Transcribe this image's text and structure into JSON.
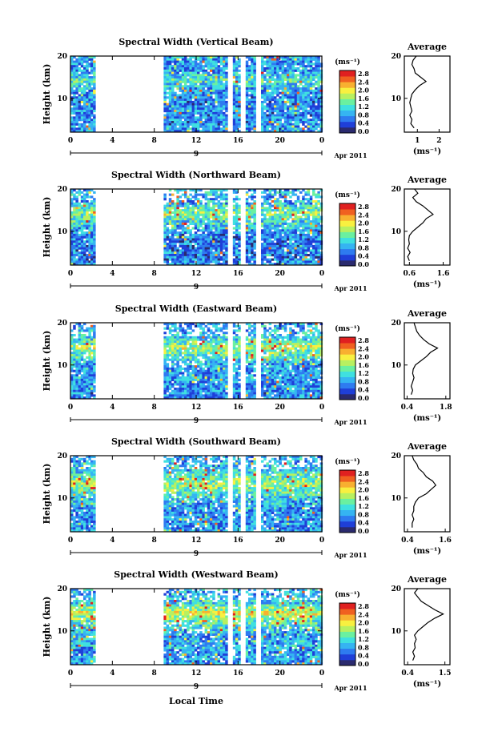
{
  "figure": {
    "xlabel": "Local Time",
    "date_label": "Apr 2011",
    "day_label": "9",
    "ylabel": "Height (km)",
    "colorbar_unit": "(ms⁻¹)",
    "colorbar_ticks": [
      "2.8",
      "2.4",
      "2.0",
      "1.6",
      "1.2",
      "0.8",
      "0.4",
      "0.0"
    ],
    "colormap": [
      "#2a2a6e",
      "#1f3fd8",
      "#2e7bf0",
      "#35b4f2",
      "#3fe0e0",
      "#6af0a0",
      "#b8f060",
      "#f8f040",
      "#f8b030",
      "#f06020",
      "#e02020"
    ],
    "avg_title": "Average",
    "avg_xlabel": "(ms⁻¹)"
  },
  "chart_data": [
    {
      "type": "heatmap",
      "title": "Spectral Width (Vertical Beam)",
      "xlabel": "Local Time",
      "ylabel": "Height (km)",
      "x_ticks": [
        "0",
        "4",
        "8",
        "12",
        "16",
        "20",
        "0"
      ],
      "xlim": [
        0,
        24
      ],
      "ylim": [
        2,
        20
      ],
      "y_ticks": [
        "20",
        "10"
      ],
      "colorbar_range": [
        0,
        2.8
      ],
      "data_gaps_hours": [
        [
          2.2,
          8.9
        ],
        [
          14.8,
          15.3
        ],
        [
          16.0,
          16.5
        ],
        [
          17.6,
          18.1
        ]
      ],
      "data_blocks_hours": [
        [
          0,
          1.9
        ],
        [
          1.9,
          2.2
        ],
        [
          8.9,
          24
        ]
      ],
      "average_profile": {
        "title": "Average",
        "xlabel": "(ms⁻¹)",
        "x_ticks": [
          "1",
          "2"
        ],
        "xlim": [
          0.4,
          2.5
        ],
        "ylim": [
          2,
          20
        ],
        "y_ticks": [
          "20",
          "10"
        ],
        "height_km": [
          3,
          4,
          5,
          6,
          7,
          8,
          9,
          10,
          11,
          12,
          13,
          14,
          15,
          16,
          17,
          18,
          19,
          20
        ],
        "width_ms": [
          0.85,
          0.7,
          0.75,
          0.65,
          0.75,
          0.7,
          0.65,
          0.7,
          0.75,
          0.9,
          1.1,
          1.4,
          1.15,
          0.9,
          0.85,
          0.75,
          0.8,
          0.95
        ]
      }
    },
    {
      "type": "heatmap",
      "title": "Spectral Width (Northward Beam)",
      "xlabel": "Local Time",
      "ylabel": "Height (km)",
      "x_ticks": [
        "0",
        "4",
        "8",
        "12",
        "16",
        "20",
        "0"
      ],
      "xlim": [
        0,
        24
      ],
      "ylim": [
        2,
        20
      ],
      "y_ticks": [
        "20",
        "10"
      ],
      "colorbar_range": [
        0,
        2.8
      ],
      "data_gaps_hours": [
        [
          2.2,
          8.9
        ],
        [
          14.8,
          15.3
        ],
        [
          16.0,
          16.5
        ],
        [
          17.6,
          18.1
        ]
      ],
      "data_blocks_hours": [
        [
          0,
          1.9
        ],
        [
          1.9,
          2.2
        ],
        [
          8.9,
          24
        ]
      ],
      "average_profile": {
        "title": "Average",
        "xlabel": "(ms⁻¹)",
        "x_ticks": [
          "0.6",
          "1.6"
        ],
        "xlim": [
          0.45,
          1.8
        ],
        "ylim": [
          2,
          20
        ],
        "y_ticks": [
          "20",
          "10"
        ],
        "height_km": [
          3,
          4,
          5,
          6,
          7,
          8,
          9,
          10,
          11,
          12,
          13,
          14,
          15,
          16,
          17,
          18,
          19,
          20
        ],
        "width_ms": [
          0.6,
          0.55,
          0.62,
          0.55,
          0.6,
          0.58,
          0.6,
          0.7,
          0.85,
          1.0,
          1.1,
          1.3,
          1.15,
          1.0,
          0.8,
          0.7,
          0.85,
          0.75
        ]
      }
    },
    {
      "type": "heatmap",
      "title": "Spectral Width (Eastward Beam)",
      "xlabel": "Local Time",
      "ylabel": "Height (km)",
      "x_ticks": [
        "0",
        "4",
        "8",
        "12",
        "16",
        "20",
        "0"
      ],
      "xlim": [
        0,
        24
      ],
      "ylim": [
        2,
        20
      ],
      "y_ticks": [
        "20",
        "10"
      ],
      "colorbar_range": [
        0,
        2.8
      ],
      "data_gaps_hours": [
        [
          2.2,
          8.9
        ],
        [
          14.8,
          15.3
        ],
        [
          16.0,
          16.5
        ],
        [
          17.6,
          18.1
        ]
      ],
      "data_blocks_hours": [
        [
          0,
          1.9
        ],
        [
          1.9,
          2.2
        ],
        [
          8.9,
          24
        ]
      ],
      "average_profile": {
        "title": "Average",
        "xlabel": "(ms⁻¹)",
        "x_ticks": [
          "0.4",
          "1.8"
        ],
        "xlim": [
          0.3,
          1.95
        ],
        "ylim": [
          2,
          20
        ],
        "y_ticks": [
          "20",
          "10"
        ],
        "height_km": [
          3,
          4,
          5,
          6,
          7,
          8,
          9,
          10,
          11,
          12,
          13,
          14,
          15,
          16,
          17,
          18,
          19,
          20
        ],
        "width_ms": [
          0.55,
          0.6,
          0.55,
          0.6,
          0.65,
          0.6,
          0.62,
          0.7,
          0.9,
          1.1,
          1.25,
          1.5,
          1.2,
          1.0,
          0.85,
          0.75,
          0.7,
          0.65
        ]
      }
    },
    {
      "type": "heatmap",
      "title": "Spectral Width (Southward Beam)",
      "xlabel": "Local Time",
      "ylabel": "Height (km)",
      "x_ticks": [
        "0",
        "4",
        "8",
        "12",
        "16",
        "20",
        "0"
      ],
      "xlim": [
        0,
        24
      ],
      "ylim": [
        2,
        20
      ],
      "y_ticks": [
        "20",
        "10"
      ],
      "colorbar_range": [
        0,
        2.8
      ],
      "data_gaps_hours": [
        [
          2.2,
          8.9
        ],
        [
          14.8,
          15.3
        ],
        [
          16.0,
          16.5
        ],
        [
          17.6,
          18.1
        ]
      ],
      "data_blocks_hours": [
        [
          0,
          1.9
        ],
        [
          1.9,
          2.2
        ],
        [
          8.9,
          24
        ]
      ],
      "average_profile": {
        "title": "Average",
        "xlabel": "(ms⁻¹)",
        "x_ticks": [
          "0.4",
          "1.6"
        ],
        "xlim": [
          0.3,
          1.75
        ],
        "ylim": [
          2,
          20
        ],
        "y_ticks": [
          "20",
          "10"
        ],
        "height_km": [
          3,
          4,
          5,
          6,
          7,
          8,
          9,
          10,
          11,
          12,
          13,
          14,
          15,
          16,
          17,
          18,
          19,
          20
        ],
        "width_ms": [
          0.55,
          0.55,
          0.6,
          0.55,
          0.6,
          0.6,
          0.65,
          0.75,
          1.0,
          1.15,
          1.3,
          1.2,
          1.0,
          0.9,
          0.75,
          0.7,
          0.6,
          0.55
        ]
      }
    },
    {
      "type": "heatmap",
      "title": "Spectral Width (Westward Beam)",
      "xlabel": "Local Time",
      "ylabel": "Height (km)",
      "x_ticks": [
        "0",
        "4",
        "8",
        "12",
        "16",
        "20",
        "0"
      ],
      "xlim": [
        0,
        24
      ],
      "ylim": [
        2,
        20
      ],
      "y_ticks": [
        "20",
        "10"
      ],
      "colorbar_range": [
        0,
        2.8
      ],
      "data_gaps_hours": [
        [
          2.2,
          8.9
        ],
        [
          14.8,
          15.3
        ],
        [
          16.0,
          16.5
        ],
        [
          17.6,
          18.1
        ]
      ],
      "data_blocks_hours": [
        [
          0,
          1.9
        ],
        [
          1.9,
          2.2
        ],
        [
          8.9,
          24
        ]
      ],
      "average_profile": {
        "title": "Average",
        "xlabel": "(ms⁻¹)",
        "x_ticks": [
          "0.4",
          "1.5"
        ],
        "xlim": [
          0.3,
          1.65
        ],
        "ylim": [
          2,
          20
        ],
        "y_ticks": [
          "20",
          "10"
        ],
        "height_km": [
          3,
          4,
          5,
          6,
          7,
          8,
          9,
          10,
          11,
          12,
          13,
          14,
          15,
          16,
          17,
          18,
          19,
          20
        ],
        "width_ms": [
          0.55,
          0.6,
          0.55,
          0.62,
          0.6,
          0.65,
          0.6,
          0.7,
          0.85,
          1.0,
          1.2,
          1.45,
          1.2,
          1.0,
          0.8,
          0.7,
          0.6,
          0.7
        ]
      }
    }
  ]
}
